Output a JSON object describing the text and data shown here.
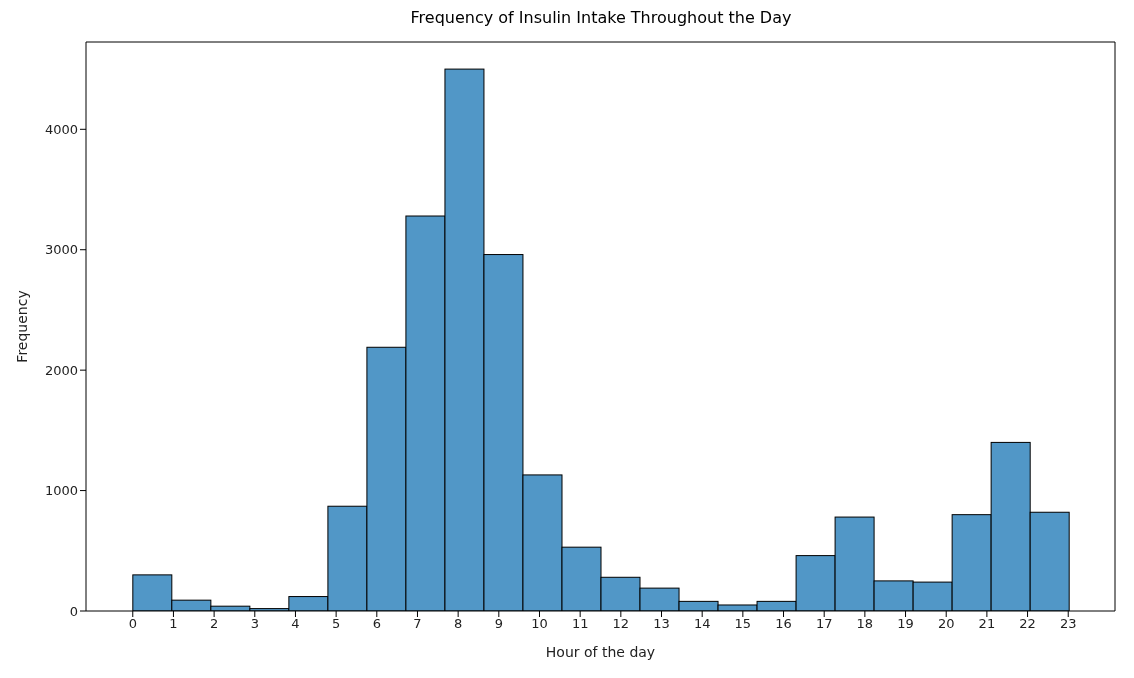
{
  "chart_data": {
    "type": "histogram",
    "title": "Frequency of Insulin Intake Throughout the Day",
    "xlabel": "Hour of the day",
    "ylabel": "Frequency",
    "bins": [
      0,
      0.958,
      1.917,
      2.875,
      3.833,
      4.792,
      5.75,
      6.708,
      7.667,
      8.625,
      9.583,
      10.542,
      11.5,
      12.458,
      13.417,
      14.375,
      15.333,
      16.292,
      17.25,
      18.208,
      19.167,
      20.125,
      21.083,
      22.042,
      23
    ],
    "values": [
      300,
      90,
      40,
      20,
      120,
      870,
      2190,
      3280,
      4500,
      2960,
      1130,
      530,
      280,
      190,
      80,
      50,
      80,
      460,
      780,
      250,
      240,
      800,
      1400,
      820
    ],
    "color": "#5197c7",
    "xlim": [
      -1.15,
      24.15
    ],
    "xticks": [
      0,
      1,
      2,
      3,
      4,
      5,
      6,
      7,
      8,
      9,
      10,
      11,
      12,
      13,
      14,
      15,
      16,
      17,
      18,
      19,
      20,
      21,
      22,
      23
    ],
    "ylim": [
      0,
      4725
    ],
    "yticks": [
      0,
      1000,
      2000,
      3000,
      4000
    ]
  }
}
